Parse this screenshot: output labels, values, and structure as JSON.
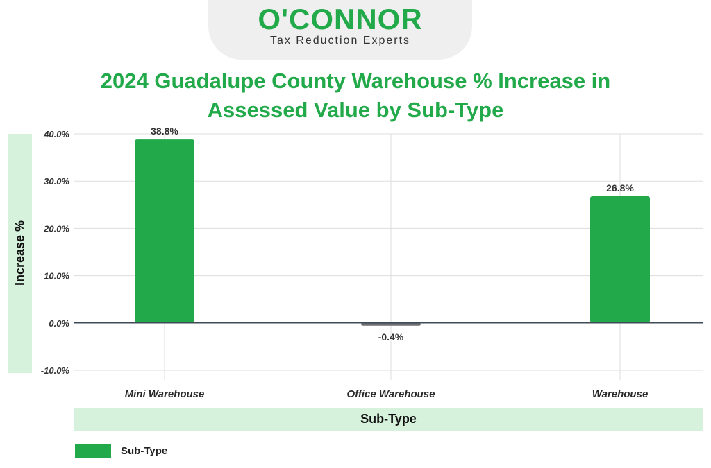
{
  "brand": {
    "name": "O'CONNOR",
    "tagline": "Tax Reduction Experts"
  },
  "colors": {
    "primary_green": "#22a94a",
    "negative_gray": "#6e6f72",
    "band_green": "#d6f1dc"
  },
  "chart_data": {
    "type": "bar",
    "title": "2024 Guadalupe County Warehouse % Increase in Assessed Value by Sub-Type",
    "xlabel": "Sub-Type",
    "ylabel": "Increase %",
    "categories": [
      "Mini Warehouse",
      "Office Warehouse",
      "Warehouse"
    ],
    "series": [
      {
        "name": "Sub-Type",
        "values": [
          38.8,
          -0.4,
          26.8
        ]
      }
    ],
    "data_labels": [
      "38.8%",
      "-0.4%",
      "26.8%"
    ],
    "ylim": [
      -10,
      40
    ],
    "yticks": [
      -10,
      0,
      10,
      20,
      30,
      40
    ],
    "ytick_labels": [
      "-10.0%",
      "0.0%",
      "10.0%",
      "20.0%",
      "30.0%",
      "40.0%"
    ],
    "grid": true,
    "legend": {
      "position": "bottom-left",
      "label": "Sub-Type"
    }
  }
}
